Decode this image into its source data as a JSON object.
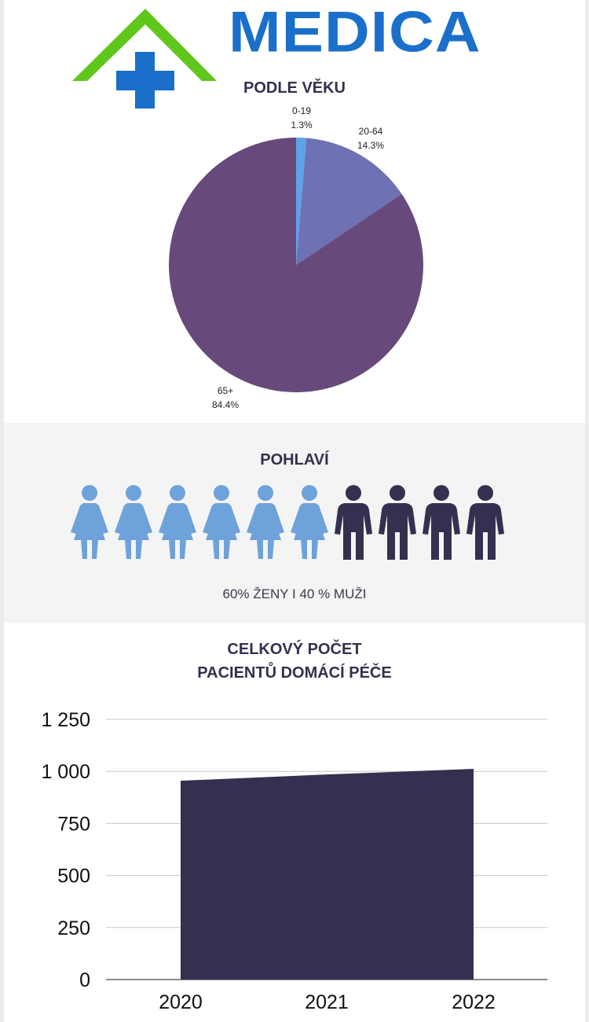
{
  "header": {
    "brand": "MEDICA",
    "logo_icon": "house-cross-icon"
  },
  "colors": {
    "accent_dark": "#35304f",
    "pie_young": "#5ea3e6",
    "pie_adult": "#6e72b4",
    "pie_senior": "#674a7b",
    "women": "#6ea2da",
    "men": "#35304f",
    "logo_green": "#5fc71c",
    "logo_blue": "#1a6fca"
  },
  "age_section": {
    "title": "PODLE VĚKU"
  },
  "gender_section": {
    "title": "POHLAVÍ",
    "caption": "60% ŽENY  I  40 % MUŽI",
    "women_count": 6,
    "men_count": 4,
    "women_icon": "woman-icon",
    "men_icon": "man-icon"
  },
  "total_section": {
    "title_line1": "CELKOVÝ POČET",
    "title_line2": "PACIENTŮ DOMÁCÍ PÉČE"
  },
  "chart_data": [
    {
      "type": "pie",
      "title": "PODLE VĚKU",
      "slices": [
        {
          "label": "0-19",
          "percent_label": "1.3%",
          "value": 1.3,
          "color": "#5ea3e6"
        },
        {
          "label": "20-64",
          "percent_label": "14.3%",
          "value": 14.3,
          "color": "#6e72b4"
        },
        {
          "label": "65+",
          "percent_label": "84.4%",
          "value": 84.4,
          "color": "#674a7b"
        }
      ]
    },
    {
      "type": "area",
      "title": "CELKOVÝ POČET PACIENTŮ DOMÁCÍ PÉČE",
      "categories": [
        "2020",
        "2021",
        "2022"
      ],
      "values": [
        955,
        985,
        1012
      ],
      "ylim": [
        0,
        1250
      ],
      "yticks": [
        0,
        250,
        500,
        750,
        1000,
        1250
      ],
      "ytick_labels": [
        "0",
        "250",
        "500",
        "750",
        "1 000",
        "1 250"
      ],
      "grid": true,
      "color": "#35304f"
    }
  ]
}
